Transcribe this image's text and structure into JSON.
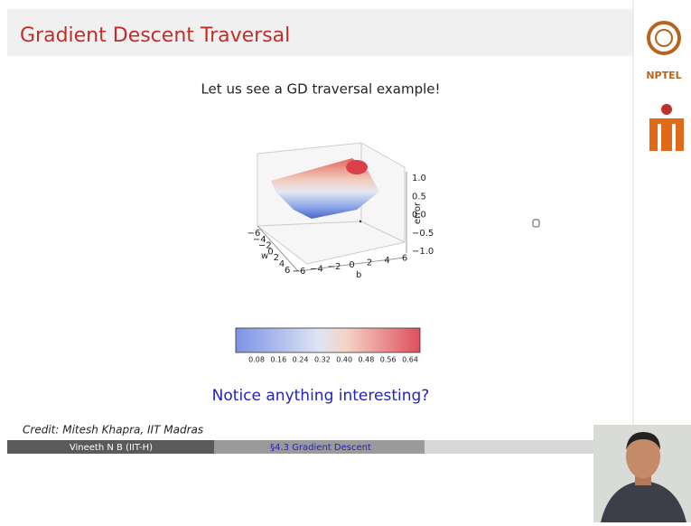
{
  "header": {
    "title": "Gradient Descent Traversal"
  },
  "logo": {
    "text": "NPTEL"
  },
  "slide": {
    "subtitle": "Let us see a GD traversal example!",
    "figure": {
      "z_ticks": [
        "1.0",
        "0.5",
        "0.0",
        "−0.5",
        "−1.0"
      ],
      "z_label": "error",
      "b_ticks": [
        "−6",
        "−4",
        "−2",
        "0",
        "2",
        "4",
        "6"
      ],
      "b_label": "b",
      "w_ticks": [
        "−6",
        "−4",
        "−2",
        "0",
        "2",
        "4",
        "6"
      ],
      "w_label": "w",
      "colorbar_ticks": [
        "0.08",
        "0.16",
        "0.24",
        "0.32",
        "0.40",
        "0.48",
        "0.56",
        "0.64"
      ]
    },
    "question": "Notice anything interesting?",
    "credit": "Credit: Mitesh Khapra, IIT Madras"
  },
  "footer": {
    "author": "Vineeth N B (IIT-H)",
    "section": "§4.3 Gradient Descent"
  }
}
